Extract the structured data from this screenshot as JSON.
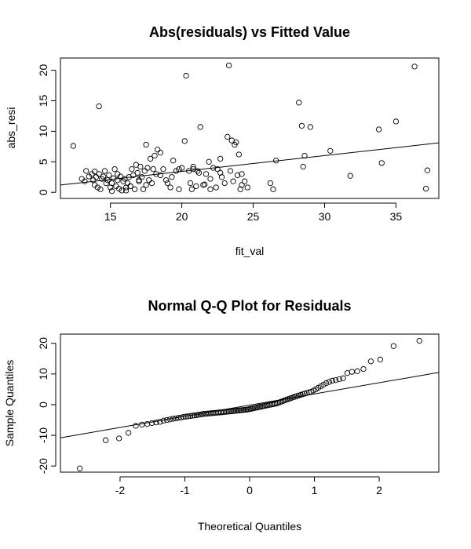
{
  "chart_data": [
    {
      "type": "scatter",
      "title": "Abs(residuals) vs Fitted Value",
      "xlabel": "fit_val",
      "ylabel": "abs_resi",
      "xlim": [
        11.5,
        38
      ],
      "ylim": [
        -1,
        22
      ],
      "xticks": [
        15,
        20,
        25,
        30,
        35
      ],
      "yticks": [
        0,
        5,
        10,
        15,
        20
      ],
      "grid": false,
      "points": [
        [
          12.4,
          7.6
        ],
        [
          13.0,
          2.2
        ],
        [
          13.2,
          1.8
        ],
        [
          13.3,
          3.5
        ],
        [
          13.5,
          2.6
        ],
        [
          13.7,
          3.0
        ],
        [
          13.8,
          2.0
        ],
        [
          13.9,
          1.2
        ],
        [
          14.0,
          2.5
        ],
        [
          14.1,
          0.8
        ],
        [
          14.2,
          3.0
        ],
        [
          14.3,
          0.5
        ],
        [
          14.4,
          2.2
        ],
        [
          14.5,
          2.6
        ],
        [
          14.6,
          3.5
        ],
        [
          14.7,
          1.5
        ],
        [
          14.8,
          2.0
        ],
        [
          14.9,
          2.8
        ],
        [
          15.0,
          0.8
        ],
        [
          15.1,
          1.5
        ],
        [
          15.2,
          2.3
        ],
        [
          15.3,
          3.8
        ],
        [
          15.4,
          1.0
        ],
        [
          15.5,
          2.0
        ],
        [
          15.6,
          0.6
        ],
        [
          15.7,
          2.6
        ],
        [
          15.8,
          0.3
        ],
        [
          15.9,
          1.8
        ],
        [
          16.0,
          2.2
        ],
        [
          16.1,
          0.8
        ],
        [
          16.2,
          1.5
        ],
        [
          16.3,
          2.5
        ],
        [
          16.4,
          1.0
        ],
        [
          16.5,
          3.8
        ],
        [
          16.6,
          2.8
        ],
        [
          16.7,
          0.5
        ],
        [
          16.8,
          4.5
        ],
        [
          16.9,
          3.2
        ],
        [
          17.0,
          1.8
        ],
        [
          17.1,
          4.2
        ],
        [
          17.2,
          2.5
        ],
        [
          17.3,
          0.5
        ],
        [
          17.4,
          3.5
        ],
        [
          17.5,
          1.2
        ],
        [
          17.6,
          4.0
        ],
        [
          17.7,
          2.0
        ],
        [
          17.8,
          5.5
        ],
        [
          17.9,
          1.5
        ],
        [
          18.0,
          3.8
        ],
        [
          18.1,
          6.0
        ],
        [
          18.2,
          3.0
        ],
        [
          18.3,
          7.0
        ],
        [
          18.5,
          6.5
        ],
        [
          18.7,
          3.8
        ],
        [
          18.9,
          2.0
        ],
        [
          19.0,
          1.5
        ],
        [
          19.2,
          0.8
        ],
        [
          19.4,
          5.2
        ],
        [
          19.6,
          3.5
        ],
        [
          19.8,
          0.5
        ],
        [
          20.0,
          4.0
        ],
        [
          20.2,
          8.4
        ],
        [
          20.3,
          19.1
        ],
        [
          20.5,
          3.5
        ],
        [
          20.6,
          1.5
        ],
        [
          20.7,
          0.5
        ],
        [
          20.8,
          3.8
        ],
        [
          21.0,
          1.0
        ],
        [
          21.1,
          3.5
        ],
        [
          21.3,
          10.7
        ],
        [
          21.5,
          1.2
        ],
        [
          21.7,
          3.0
        ],
        [
          21.9,
          5.0
        ],
        [
          22.0,
          2.2
        ],
        [
          22.2,
          4.0
        ],
        [
          22.4,
          0.8
        ],
        [
          22.5,
          3.8
        ],
        [
          22.7,
          5.5
        ],
        [
          22.8,
          2.5
        ],
        [
          23.0,
          1.5
        ],
        [
          23.2,
          9.1
        ],
        [
          23.3,
          20.8
        ],
        [
          23.4,
          3.5
        ],
        [
          23.5,
          8.5
        ],
        [
          23.6,
          1.8
        ],
        [
          23.7,
          7.8
        ],
        [
          23.8,
          8.2
        ],
        [
          23.9,
          2.8
        ],
        [
          24.0,
          6.2
        ],
        [
          24.1,
          0.5
        ],
        [
          24.2,
          1.2
        ],
        [
          24.4,
          1.8
        ],
        [
          24.6,
          0.8
        ],
        [
          26.2,
          1.5
        ],
        [
          26.4,
          0.5
        ],
        [
          26.6,
          5.2
        ],
        [
          28.2,
          14.7
        ],
        [
          28.4,
          10.9
        ],
        [
          28.5,
          4.2
        ],
        [
          28.6,
          6.0
        ],
        [
          29.0,
          10.7
        ],
        [
          30.4,
          6.8
        ],
        [
          31.8,
          2.7
        ],
        [
          33.8,
          10.3
        ],
        [
          34.0,
          4.8
        ],
        [
          35.0,
          11.6
        ],
        [
          36.3,
          20.6
        ],
        [
          37.1,
          0.6
        ],
        [
          37.2,
          3.6
        ],
        [
          15.5,
          3.0
        ],
        [
          14.2,
          14.1
        ],
        [
          16.4,
          1.0
        ],
        [
          17.5,
          7.8
        ],
        [
          19.8,
          3.8
        ],
        [
          21.2,
          3.2
        ],
        [
          22.7,
          3.2
        ],
        [
          17.0,
          2.0
        ],
        [
          18.5,
          2.8
        ],
        [
          20.8,
          4.2
        ],
        [
          22.0,
          0.5
        ],
        [
          16.1,
          0.3
        ],
        [
          19.3,
          2.5
        ],
        [
          24.2,
          3.0
        ],
        [
          15.1,
          0.2
        ],
        [
          13.9,
          3.4
        ],
        [
          21.6,
          1.3
        ]
      ],
      "fit_line": {
        "x": [
          11.5,
          38
        ],
        "y": [
          1.2,
          8.1
        ]
      }
    },
    {
      "type": "scatter",
      "title": "Normal Q-Q Plot for Residuals",
      "xlabel": "Theoretical Quantiles",
      "ylabel": "Sample Quantiles",
      "xlim": [
        -2.92,
        2.92
      ],
      "ylim": [
        -22,
        23
      ],
      "xticks": [
        -2,
        -1,
        0,
        1,
        2
      ],
      "yticks": [
        -20,
        -10,
        0,
        10,
        20
      ],
      "grid": false,
      "qq_reference_line": {
        "x": [
          -2.92,
          2.92
        ],
        "y": [
          -10.8,
          10.5
        ]
      },
      "qq_samples": [
        -20.8,
        -11.6,
        -11.0,
        -9.2,
        -6.9,
        -6.5,
        -6.3,
        -6.0,
        -5.8,
        -5.6,
        -5.2,
        -5.0,
        -4.8,
        -4.6,
        -4.5,
        -4.3,
        -4.2,
        -4.0,
        -3.9,
        -3.8,
        -3.7,
        -3.6,
        -3.5,
        -3.4,
        -3.3,
        -3.2,
        -3.1,
        -3.0,
        -2.95,
        -2.9,
        -2.85,
        -2.8,
        -2.75,
        -2.7,
        -2.65,
        -2.6,
        -2.55,
        -2.5,
        -2.45,
        -2.4,
        -2.35,
        -2.3,
        -2.25,
        -2.2,
        -2.15,
        -2.1,
        -2.05,
        -2.0,
        -1.95,
        -1.9,
        -1.85,
        -1.8,
        -1.75,
        -1.7,
        -1.65,
        -1.6,
        -1.5,
        -1.4,
        -1.3,
        -1.2,
        -1.1,
        -1.0,
        -0.9,
        -0.8,
        -0.7,
        -0.6,
        -0.5,
        -0.4,
        -0.3,
        -0.2,
        -0.1,
        0.0,
        0.1,
        0.2,
        0.3,
        0.4,
        0.6,
        0.8,
        1.0,
        1.2,
        1.4,
        1.6,
        1.8,
        2.0,
        2.2,
        2.4,
        2.6,
        2.8,
        3.0,
        3.2,
        3.4,
        3.6,
        3.8,
        4.0,
        4.2,
        4.6,
        5.0,
        5.5,
        6.0,
        6.5,
        7.0,
        7.4,
        7.8,
        8.0,
        8.3,
        8.6,
        10.3,
        10.7,
        10.9,
        11.6,
        14.1,
        14.7,
        19.1,
        20.8
      ]
    }
  ]
}
